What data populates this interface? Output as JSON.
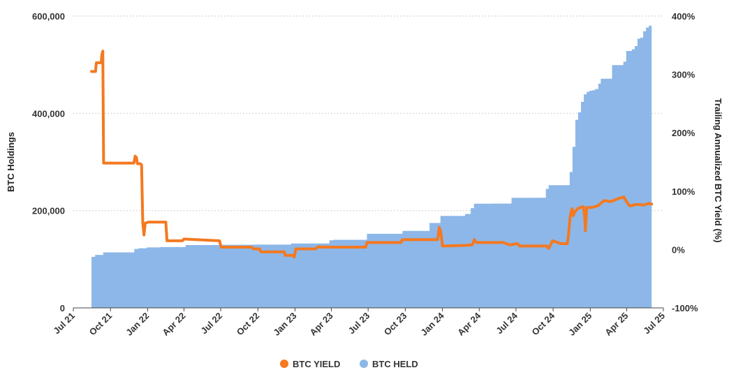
{
  "chart_data": {
    "type": "area+line",
    "xlabel": "",
    "ylabel": "BTC Holdings",
    "y2label": "Trailing Annualized BTC Yield (%)",
    "ylim": [
      0,
      600000
    ],
    "y2lim": [
      -100,
      400
    ],
    "x_ticks": [
      "Jul 21",
      "Oct 21",
      "Jan 22",
      "Apr 22",
      "Jul 22",
      "Oct 22",
      "Jan 23",
      "Apr 23",
      "Jul 23",
      "Oct 23",
      "Jan 24",
      "Apr 24",
      "Jul 24",
      "Oct 24",
      "Jan 25",
      "Apr 25",
      "Jul 25"
    ],
    "y_ticks": [
      "0",
      "200,000",
      "400,000",
      "600,000"
    ],
    "y2_ticks": [
      "-100%",
      "0%",
      "100%",
      "200%",
      "300%",
      "400%"
    ],
    "grid": "horizontal dotted",
    "legend_position": "bottom",
    "series": [
      {
        "name": "BTC YIELD",
        "type": "line",
        "axis": "right",
        "color": "#F47920",
        "unit": "%",
        "points": [
          [
            "2021-08-15",
            305
          ],
          [
            "2021-08-25",
            305
          ],
          [
            "2021-08-27",
            320
          ],
          [
            "2021-09-08",
            320
          ],
          [
            "2021-09-10",
            335
          ],
          [
            "2021-09-12",
            340
          ],
          [
            "2021-09-14",
            148
          ],
          [
            "2021-11-28",
            148
          ],
          [
            "2021-12-01",
            160
          ],
          [
            "2021-12-04",
            158
          ],
          [
            "2021-12-07",
            147
          ],
          [
            "2021-12-14",
            147
          ],
          [
            "2021-12-17",
            145
          ],
          [
            "2021-12-20",
            45
          ],
          [
            "2021-12-23",
            25
          ],
          [
            "2021-12-26",
            45
          ],
          [
            "2022-01-03",
            47
          ],
          [
            "2022-02-15",
            47
          ],
          [
            "2022-02-18",
            15
          ],
          [
            "2022-03-28",
            15
          ],
          [
            "2022-04-01",
            18
          ],
          [
            "2022-06-28",
            15
          ],
          [
            "2022-07-02",
            4
          ],
          [
            "2022-09-15",
            4
          ],
          [
            "2022-09-20",
            1
          ],
          [
            "2022-10-05",
            1
          ],
          [
            "2022-10-08",
            -4
          ],
          [
            "2022-12-05",
            -4
          ],
          [
            "2022-12-08",
            -10
          ],
          [
            "2022-12-28",
            -10
          ],
          [
            "2022-12-30",
            -13
          ],
          [
            "2023-01-03",
            1
          ],
          [
            "2023-02-20",
            1
          ],
          [
            "2023-03-01",
            5
          ],
          [
            "2023-03-10",
            4
          ],
          [
            "2023-06-25",
            4
          ],
          [
            "2023-06-28",
            12
          ],
          [
            "2023-09-20",
            12
          ],
          [
            "2023-09-24",
            17
          ],
          [
            "2023-12-20",
            17
          ],
          [
            "2023-12-22",
            26
          ],
          [
            "2023-12-24",
            38
          ],
          [
            "2023-12-28",
            30
          ],
          [
            "2024-01-01",
            6
          ],
          [
            "2024-02-25",
            7
          ],
          [
            "2024-03-15",
            8
          ],
          [
            "2024-03-20",
            17
          ],
          [
            "2024-03-25",
            12
          ],
          [
            "2024-05-31",
            12
          ],
          [
            "2024-06-15",
            8
          ],
          [
            "2024-07-05",
            10
          ],
          [
            "2024-07-10",
            6
          ],
          [
            "2024-09-15",
            6
          ],
          [
            "2024-09-20",
            2
          ],
          [
            "2024-09-30",
            15
          ],
          [
            "2024-10-20",
            10
          ],
          [
            "2024-11-05",
            10
          ],
          [
            "2024-11-08",
            24
          ],
          [
            "2024-11-12",
            55
          ],
          [
            "2024-11-15",
            66
          ],
          [
            "2024-11-17",
            70
          ],
          [
            "2024-11-20",
            58
          ],
          [
            "2024-11-24",
            65
          ],
          [
            "2024-12-01",
            70
          ],
          [
            "2024-12-05",
            71
          ],
          [
            "2024-12-10",
            73
          ],
          [
            "2024-12-15",
            73
          ],
          [
            "2024-12-18",
            58
          ],
          [
            "2024-12-20",
            32
          ],
          [
            "2024-12-23",
            72
          ],
          [
            "2025-01-05",
            72
          ],
          [
            "2025-01-20",
            75
          ],
          [
            "2025-02-01",
            82
          ],
          [
            "2025-02-05",
            84
          ],
          [
            "2025-02-20",
            82
          ],
          [
            "2025-03-10",
            87
          ],
          [
            "2025-03-25",
            90
          ],
          [
            "2025-04-01",
            82
          ],
          [
            "2025-04-08",
            75
          ],
          [
            "2025-04-14",
            75
          ],
          [
            "2025-04-21",
            77
          ],
          [
            "2025-05-05",
            77
          ],
          [
            "2025-05-12",
            76
          ],
          [
            "2025-05-26",
            79
          ],
          [
            "2025-06-02",
            78
          ]
        ]
      },
      {
        "name": "BTC HELD",
        "type": "area",
        "axis": "left",
        "color": "#8DB7E8",
        "points": [
          [
            "2021-08-15",
            105000
          ],
          [
            "2021-08-24",
            108992
          ],
          [
            "2021-09-13",
            114042
          ],
          [
            "2021-11-29",
            121044
          ],
          [
            "2021-12-09",
            122478
          ],
          [
            "2021-12-30",
            124391
          ],
          [
            "2022-02-01",
            125051
          ],
          [
            "2022-04-05",
            129218
          ],
          [
            "2022-06-28",
            129699
          ],
          [
            "2022-09-20",
            130000
          ],
          [
            "2022-12-22",
            132500
          ],
          [
            "2023-03-27",
            138955
          ],
          [
            "2023-04-05",
            140000
          ],
          [
            "2023-06-28",
            152333
          ],
          [
            "2023-09-24",
            158245
          ],
          [
            "2023-11-30",
            174530
          ],
          [
            "2023-12-27",
            189150
          ],
          [
            "2024-02-26",
            193000
          ],
          [
            "2024-03-11",
            205000
          ],
          [
            "2024-03-19",
            214246
          ],
          [
            "2024-05-01",
            214400
          ],
          [
            "2024-06-20",
            226331
          ],
          [
            "2024-08-01",
            226500
          ],
          [
            "2024-09-13",
            244800
          ],
          [
            "2024-09-20",
            252220
          ],
          [
            "2024-11-11",
            279420
          ],
          [
            "2024-11-18",
            331200
          ],
          [
            "2024-11-25",
            386700
          ],
          [
            "2024-12-02",
            402100
          ],
          [
            "2024-12-09",
            423650
          ],
          [
            "2024-12-16",
            439000
          ],
          [
            "2024-12-23",
            444262
          ],
          [
            "2024-12-30",
            446400
          ],
          [
            "2025-01-06",
            447470
          ],
          [
            "2025-01-13",
            450000
          ],
          [
            "2025-01-21",
            461000
          ],
          [
            "2025-01-27",
            471107
          ],
          [
            "2025-02-24",
            499096
          ],
          [
            "2025-03-17",
            499226
          ],
          [
            "2025-03-24",
            506137
          ],
          [
            "2025-03-31",
            528185
          ],
          [
            "2025-04-14",
            531644
          ],
          [
            "2025-04-21",
            538200
          ],
          [
            "2025-04-28",
            553555
          ],
          [
            "2025-05-05",
            555450
          ],
          [
            "2025-05-12",
            568840
          ],
          [
            "2025-05-19",
            576230
          ],
          [
            "2025-05-26",
            580250
          ],
          [
            "2025-06-02",
            580955
          ]
        ]
      }
    ]
  }
}
